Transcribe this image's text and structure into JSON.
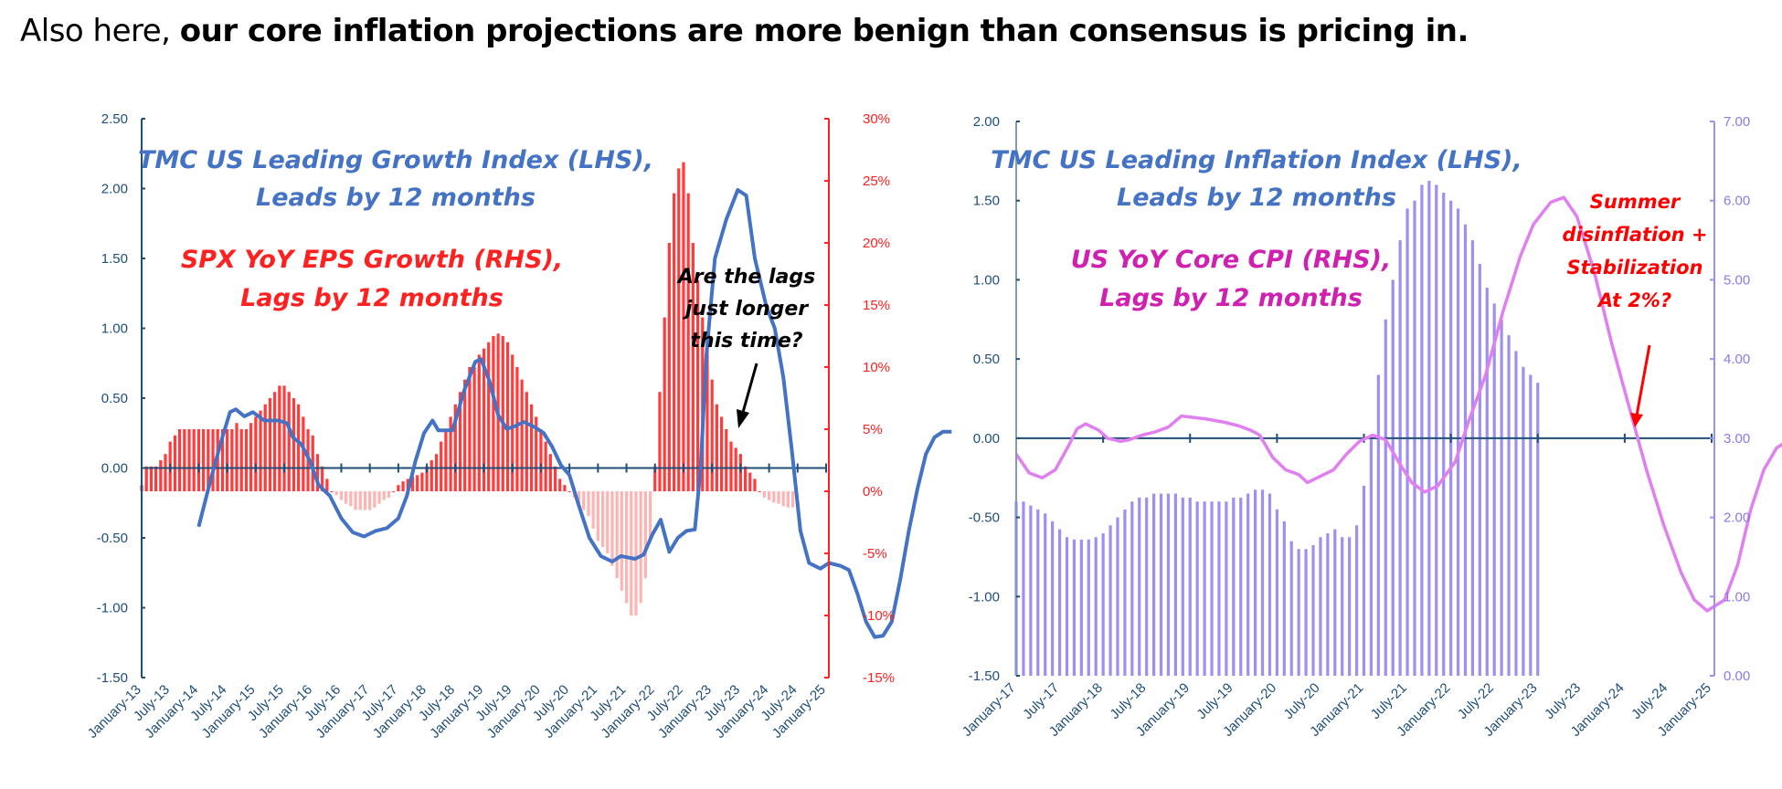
{
  "headline": {
    "prefix": "Also here, ",
    "bold": "our core inflation projections are more benign than consensus is pricing in."
  },
  "colors": {
    "axis_blue": "#1f4e79",
    "line_blue": "#4472c4",
    "eps_red": "#ff3b3b",
    "eps_red_light": "#ffb3b3",
    "rhs_red": "#ff2020",
    "cpi_bar_purple": "#9e8ff0",
    "lii_line_violet": "#e07ff0",
    "annotation_magenta": "#d020b0",
    "annotation_red": "#ff0000",
    "black": "#000000"
  },
  "chart_data": [
    {
      "id": "growth",
      "type": "bar+line",
      "title": "",
      "annotations": {
        "lhs_title_1": "TMC US Leading Growth Index (LHS),",
        "lhs_title_2": "Leads by 12 months",
        "rhs_title_1": "SPX YoY EPS Growth (RHS),",
        "rhs_title_2": "Lags by 12 months",
        "callout_1": "Are the lags",
        "callout_2": "just longer",
        "callout_3": "this time?"
      },
      "left_axis": {
        "ylim": [
          -1.5,
          2.5
        ],
        "ticks": [
          "2.50",
          "2.00",
          "1.50",
          "1.00",
          "0.50",
          "0.00",
          "-0.50",
          "-1.00",
          "-1.50"
        ],
        "values": [
          2.5,
          2.0,
          1.5,
          1.0,
          0.5,
          0.0,
          -0.5,
          -1.0,
          -1.5
        ]
      },
      "right_axis": {
        "ylim": [
          -15,
          30
        ],
        "ticks": [
          "30%",
          "25%",
          "20%",
          "15%",
          "10%",
          "5%",
          "0%",
          "-5%",
          "-10%",
          "-15%"
        ],
        "values": [
          30,
          25,
          20,
          15,
          10,
          5,
          0,
          -5,
          -10,
          -15
        ]
      },
      "x_ticks": [
        "January-13",
        "July-13",
        "January-14",
        "July-14",
        "January-15",
        "July-15",
        "January-16",
        "July-16",
        "January-17",
        "July-17",
        "January-18",
        "July-18",
        "January-19",
        "July-19",
        "January-20",
        "July-20",
        "January-21",
        "July-21",
        "January-22",
        "July-22",
        "January-23",
        "July-23",
        "January-24",
        "July-24",
        "January-25"
      ],
      "series": [
        {
          "name": "TMC US Leading Growth Index (LHS)",
          "kind": "line",
          "axis": "left",
          "points": [
            [
              2.0,
              -0.42
            ],
            [
              2.4,
              -0.1
            ],
            [
              2.8,
              0.2
            ],
            [
              3.1,
              0.4
            ],
            [
              3.3,
              0.42
            ],
            [
              3.6,
              0.37
            ],
            [
              3.9,
              0.4
            ],
            [
              4.3,
              0.34
            ],
            [
              4.8,
              0.34
            ],
            [
              5.1,
              0.32
            ],
            [
              5.3,
              0.22
            ],
            [
              5.6,
              0.17
            ],
            [
              5.9,
              0.05
            ],
            [
              6.2,
              -0.12
            ],
            [
              6.6,
              -0.2
            ],
            [
              7.0,
              -0.36
            ],
            [
              7.4,
              -0.46
            ],
            [
              7.8,
              -0.49
            ],
            [
              8.2,
              -0.45
            ],
            [
              8.6,
              -0.43
            ],
            [
              9.0,
              -0.36
            ],
            [
              9.3,
              -0.2
            ],
            [
              9.6,
              0.05
            ],
            [
              9.9,
              0.25
            ],
            [
              10.2,
              0.34
            ],
            [
              10.4,
              0.27
            ],
            [
              10.9,
              0.27
            ],
            [
              11.3,
              0.55
            ],
            [
              11.7,
              0.76
            ],
            [
              11.9,
              0.78
            ],
            [
              12.2,
              0.62
            ],
            [
              12.5,
              0.38
            ],
            [
              12.8,
              0.28
            ],
            [
              13.1,
              0.3
            ],
            [
              13.4,
              0.33
            ],
            [
              13.8,
              0.29
            ],
            [
              14.1,
              0.25
            ],
            [
              14.4,
              0.15
            ],
            [
              14.7,
              0.02
            ],
            [
              15.0,
              -0.05
            ],
            [
              15.3,
              -0.25
            ],
            [
              15.7,
              -0.5
            ],
            [
              16.1,
              -0.63
            ],
            [
              16.5,
              -0.67
            ],
            [
              16.8,
              -0.63
            ],
            [
              17.3,
              -0.65
            ],
            [
              17.6,
              -0.62
            ],
            [
              17.9,
              -0.48
            ],
            [
              18.2,
              -0.37
            ],
            [
              18.5,
              -0.6
            ],
            [
              18.8,
              -0.5
            ],
            [
              19.1,
              -0.45
            ],
            [
              19.4,
              -0.44
            ],
            [
              19.6,
              0.0
            ],
            [
              19.8,
              0.8
            ],
            [
              20.1,
              1.5
            ],
            [
              20.5,
              1.78
            ],
            [
              20.9,
              1.99
            ],
            [
              21.2,
              1.95
            ],
            [
              21.5,
              1.5
            ],
            [
              21.9,
              1.16
            ],
            [
              22.2,
              1.0
            ],
            [
              22.5,
              0.65
            ],
            [
              22.8,
              0.12
            ],
            [
              23.1,
              -0.45
            ],
            [
              23.4,
              -0.68
            ],
            [
              23.8,
              -0.72
            ],
            [
              24.1,
              -0.68
            ],
            [
              24.5,
              -0.7
            ],
            [
              24.8,
              -0.73
            ],
            [
              25.1,
              -0.9
            ],
            [
              25.4,
              -1.1
            ],
            [
              25.7,
              -1.21
            ],
            [
              26.0,
              -1.2
            ],
            [
              26.3,
              -1.1
            ],
            [
              26.6,
              -0.8
            ],
            [
              26.9,
              -0.45
            ],
            [
              27.2,
              -0.15
            ],
            [
              27.5,
              0.1
            ],
            [
              27.8,
              0.22
            ],
            [
              28.1,
              0.26
            ],
            [
              28.4,
              0.26
            ]
          ]
        },
        {
          "name": "SPX YoY EPS Growth (RHS)",
          "kind": "bar",
          "axis": "right",
          "note": "values in %, one bar per month starting January-13 (x index 0 = January-13, step 1/12 year)",
          "values": [
            0.5,
            2,
            2,
            2,
            2.5,
            3,
            4,
            4.5,
            5,
            5,
            5,
            5,
            5,
            5,
            5,
            5,
            5,
            5,
            5,
            5,
            5.5,
            5,
            5,
            5.5,
            6,
            6.5,
            7,
            7.5,
            8,
            8.5,
            8.5,
            8,
            7.5,
            7,
            6,
            5,
            4.5,
            3,
            2,
            1,
            0,
            -0.3,
            -0.7,
            -1,
            -1.2,
            -1.5,
            -1.5,
            -1.5,
            -1.5,
            -1.3,
            -1,
            -0.7,
            -0.5,
            0,
            0.5,
            0.8,
            1,
            1.2,
            1.3,
            1.5,
            2,
            2.5,
            3,
            4,
            5,
            6,
            7,
            8,
            9,
            10,
            10,
            11,
            11.5,
            12,
            12.5,
            12.7,
            12.5,
            12,
            11,
            10,
            9,
            8,
            7,
            6,
            5,
            4,
            3,
            2,
            1,
            0.5,
            0,
            -0.5,
            -1,
            -1.5,
            -2,
            -3,
            -4,
            -4.5,
            -5,
            -6,
            -7,
            -8,
            -9,
            -10,
            -10,
            -9,
            -7,
            -4,
            2,
            8,
            14,
            20,
            24,
            26,
            26.5,
            24,
            20,
            17,
            14,
            12,
            9,
            7,
            6,
            5,
            4,
            3.5,
            3,
            2,
            1.5,
            1,
            0,
            -0.5,
            -0.7,
            -0.9,
            -1,
            -1.2,
            -1.3,
            -1.3
          ]
        }
      ]
    },
    {
      "id": "inflation",
      "type": "bar+line",
      "title": "",
      "annotations": {
        "lhs_title_1": "TMC US Leading Inflation Index (LHS),",
        "lhs_title_2": "Leads by 12 months",
        "rhs_title_1": "US YoY Core CPI (RHS),",
        "rhs_title_2": "Lags by 12 months",
        "callout_1": "Summer",
        "callout_2": "disinflation +",
        "callout_3": "Stabilization",
        "callout_4": "At 2%?"
      },
      "left_axis": {
        "ylim": [
          -1.5,
          2.0
        ],
        "ticks": [
          "2.00",
          "1.50",
          "1.00",
          "0.50",
          "0.00",
          "-0.50",
          "-1.00",
          "-1.50"
        ],
        "values": [
          2.0,
          1.5,
          1.0,
          0.5,
          0.0,
          -0.5,
          -1.0,
          -1.5
        ]
      },
      "right_axis": {
        "ylim": [
          0,
          7
        ],
        "ticks": [
          "7.00",
          "6.00",
          "5.00",
          "4.00",
          "3.00",
          "2.00",
          "1.00",
          "0.00"
        ],
        "values": [
          7,
          6,
          5,
          4,
          3,
          2,
          1,
          0
        ]
      },
      "x_ticks": [
        "January-17",
        "July-17",
        "January-18",
        "July-18",
        "January-19",
        "July-19",
        "January-20",
        "July-20",
        "January-21",
        "July-21",
        "January-22",
        "July-22",
        "January-23",
        "July-23",
        "January-24",
        "July-24",
        "January-25"
      ],
      "series": [
        {
          "name": "US YoY Core CPI (RHS)",
          "kind": "bar",
          "axis": "right",
          "note": "values in %, one bar per month starting January-17",
          "values": [
            2.2,
            2.2,
            2.15,
            2.1,
            2.05,
            1.95,
            1.85,
            1.75,
            1.72,
            1.72,
            1.72,
            1.75,
            1.8,
            1.9,
            2.0,
            2.1,
            2.2,
            2.25,
            2.25,
            2.3,
            2.3,
            2.3,
            2.3,
            2.25,
            2.25,
            2.2,
            2.2,
            2.2,
            2.2,
            2.2,
            2.25,
            2.25,
            2.3,
            2.35,
            2.35,
            2.3,
            2.1,
            1.95,
            1.7,
            1.6,
            1.6,
            1.65,
            1.75,
            1.8,
            1.85,
            1.75,
            1.75,
            1.9,
            2.4,
            3.0,
            3.8,
            4.5,
            5.0,
            5.5,
            5.9,
            6.0,
            6.2,
            6.25,
            6.2,
            6.1,
            6.0,
            5.9,
            5.7,
            5.5,
            5.2,
            4.9,
            4.7,
            4.5,
            4.3,
            4.1,
            3.9,
            3.8,
            3.7
          ]
        },
        {
          "name": "TMC US Leading Inflation Index (LHS)",
          "kind": "line",
          "axis": "left",
          "points": [
            [
              0.0,
              -0.1
            ],
            [
              0.3,
              -0.22
            ],
            [
              0.6,
              -0.25
            ],
            [
              0.9,
              -0.2
            ],
            [
              1.2,
              -0.05
            ],
            [
              1.4,
              0.06
            ],
            [
              1.6,
              0.09
            ],
            [
              1.9,
              0.05
            ],
            [
              2.1,
              0.0
            ],
            [
              2.4,
              -0.02
            ],
            [
              2.6,
              -0.01
            ],
            [
              2.9,
              0.02
            ],
            [
              3.2,
              0.04
            ],
            [
              3.5,
              0.07
            ],
            [
              3.8,
              0.14
            ],
            [
              4.1,
              0.13
            ],
            [
              4.4,
              0.12
            ],
            [
              4.8,
              0.1
            ],
            [
              5.1,
              0.08
            ],
            [
              5.4,
              0.05
            ],
            [
              5.6,
              0.02
            ],
            [
              5.9,
              -0.12
            ],
            [
              6.2,
              -0.2
            ],
            [
              6.5,
              -0.23
            ],
            [
              6.7,
              -0.28
            ],
            [
              7.0,
              -0.24
            ],
            [
              7.3,
              -0.2
            ],
            [
              7.6,
              -0.1
            ],
            [
              7.9,
              -0.02
            ],
            [
              8.2,
              0.02
            ],
            [
              8.5,
              -0.01
            ],
            [
              8.8,
              -0.15
            ],
            [
              9.1,
              -0.28
            ],
            [
              9.4,
              -0.34
            ],
            [
              9.7,
              -0.3
            ],
            [
              10.1,
              -0.15
            ],
            [
              10.4,
              0.1
            ],
            [
              10.8,
              0.4
            ],
            [
              11.2,
              0.8
            ],
            [
              11.6,
              1.15
            ],
            [
              11.9,
              1.35
            ],
            [
              12.3,
              1.49
            ],
            [
              12.6,
              1.52
            ],
            [
              12.9,
              1.4
            ],
            [
              13.3,
              1.05
            ],
            [
              13.7,
              0.6
            ],
            [
              14.1,
              0.2
            ],
            [
              14.5,
              -0.2
            ],
            [
              14.9,
              -0.55
            ],
            [
              15.3,
              -0.85
            ],
            [
              15.6,
              -1.02
            ],
            [
              15.9,
              -1.09
            ],
            [
              16.3,
              -1.02
            ],
            [
              16.6,
              -0.8
            ],
            [
              16.9,
              -0.45
            ],
            [
              17.2,
              -0.2
            ],
            [
              17.5,
              -0.06
            ],
            [
              17.8,
              -0.01
            ]
          ]
        }
      ]
    }
  ]
}
